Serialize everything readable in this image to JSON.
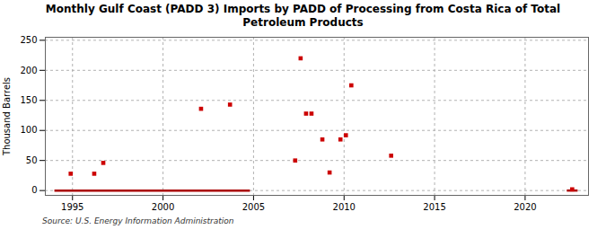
{
  "chart_data": {
    "type": "scatter",
    "title": "Monthly Gulf Coast (PADD 3) Imports by PADD of Processing from Costa Rica of Total\nPetroleum Products",
    "ylabel": "Thousand Barrels",
    "source": "Source: U.S. Energy Information Administration",
    "xlim": [
      1993.5,
      2023.5
    ],
    "ylim": [
      -8,
      255
    ],
    "xticks": [
      1995,
      2000,
      2005,
      2010,
      2015,
      2020
    ],
    "yticks": [
      0,
      50,
      100,
      150,
      200,
      250
    ],
    "grid": true,
    "series": [
      {
        "type": "scatter",
        "color": "#cc0000",
        "marker": "square",
        "x": [
          1994.9,
          1996.2,
          1996.7,
          2002.1,
          2003.7,
          2007.3,
          2007.6,
          2007.9,
          2008.2,
          2008.8,
          2009.2,
          2009.8,
          2010.1,
          2010.4,
          2012.6,
          2022.6
        ],
        "values": [
          28,
          28,
          46,
          136,
          143,
          50,
          220,
          128,
          128,
          85,
          30,
          85,
          92,
          175,
          58,
          2
        ]
      },
      {
        "type": "line",
        "color": "#aa0000",
        "segments": [
          {
            "x_start": 1994.0,
            "x_end": 2004.8,
            "y": 0
          },
          {
            "x_start": 2022.3,
            "x_end": 2022.9,
            "y": 0
          }
        ]
      }
    ]
  }
}
